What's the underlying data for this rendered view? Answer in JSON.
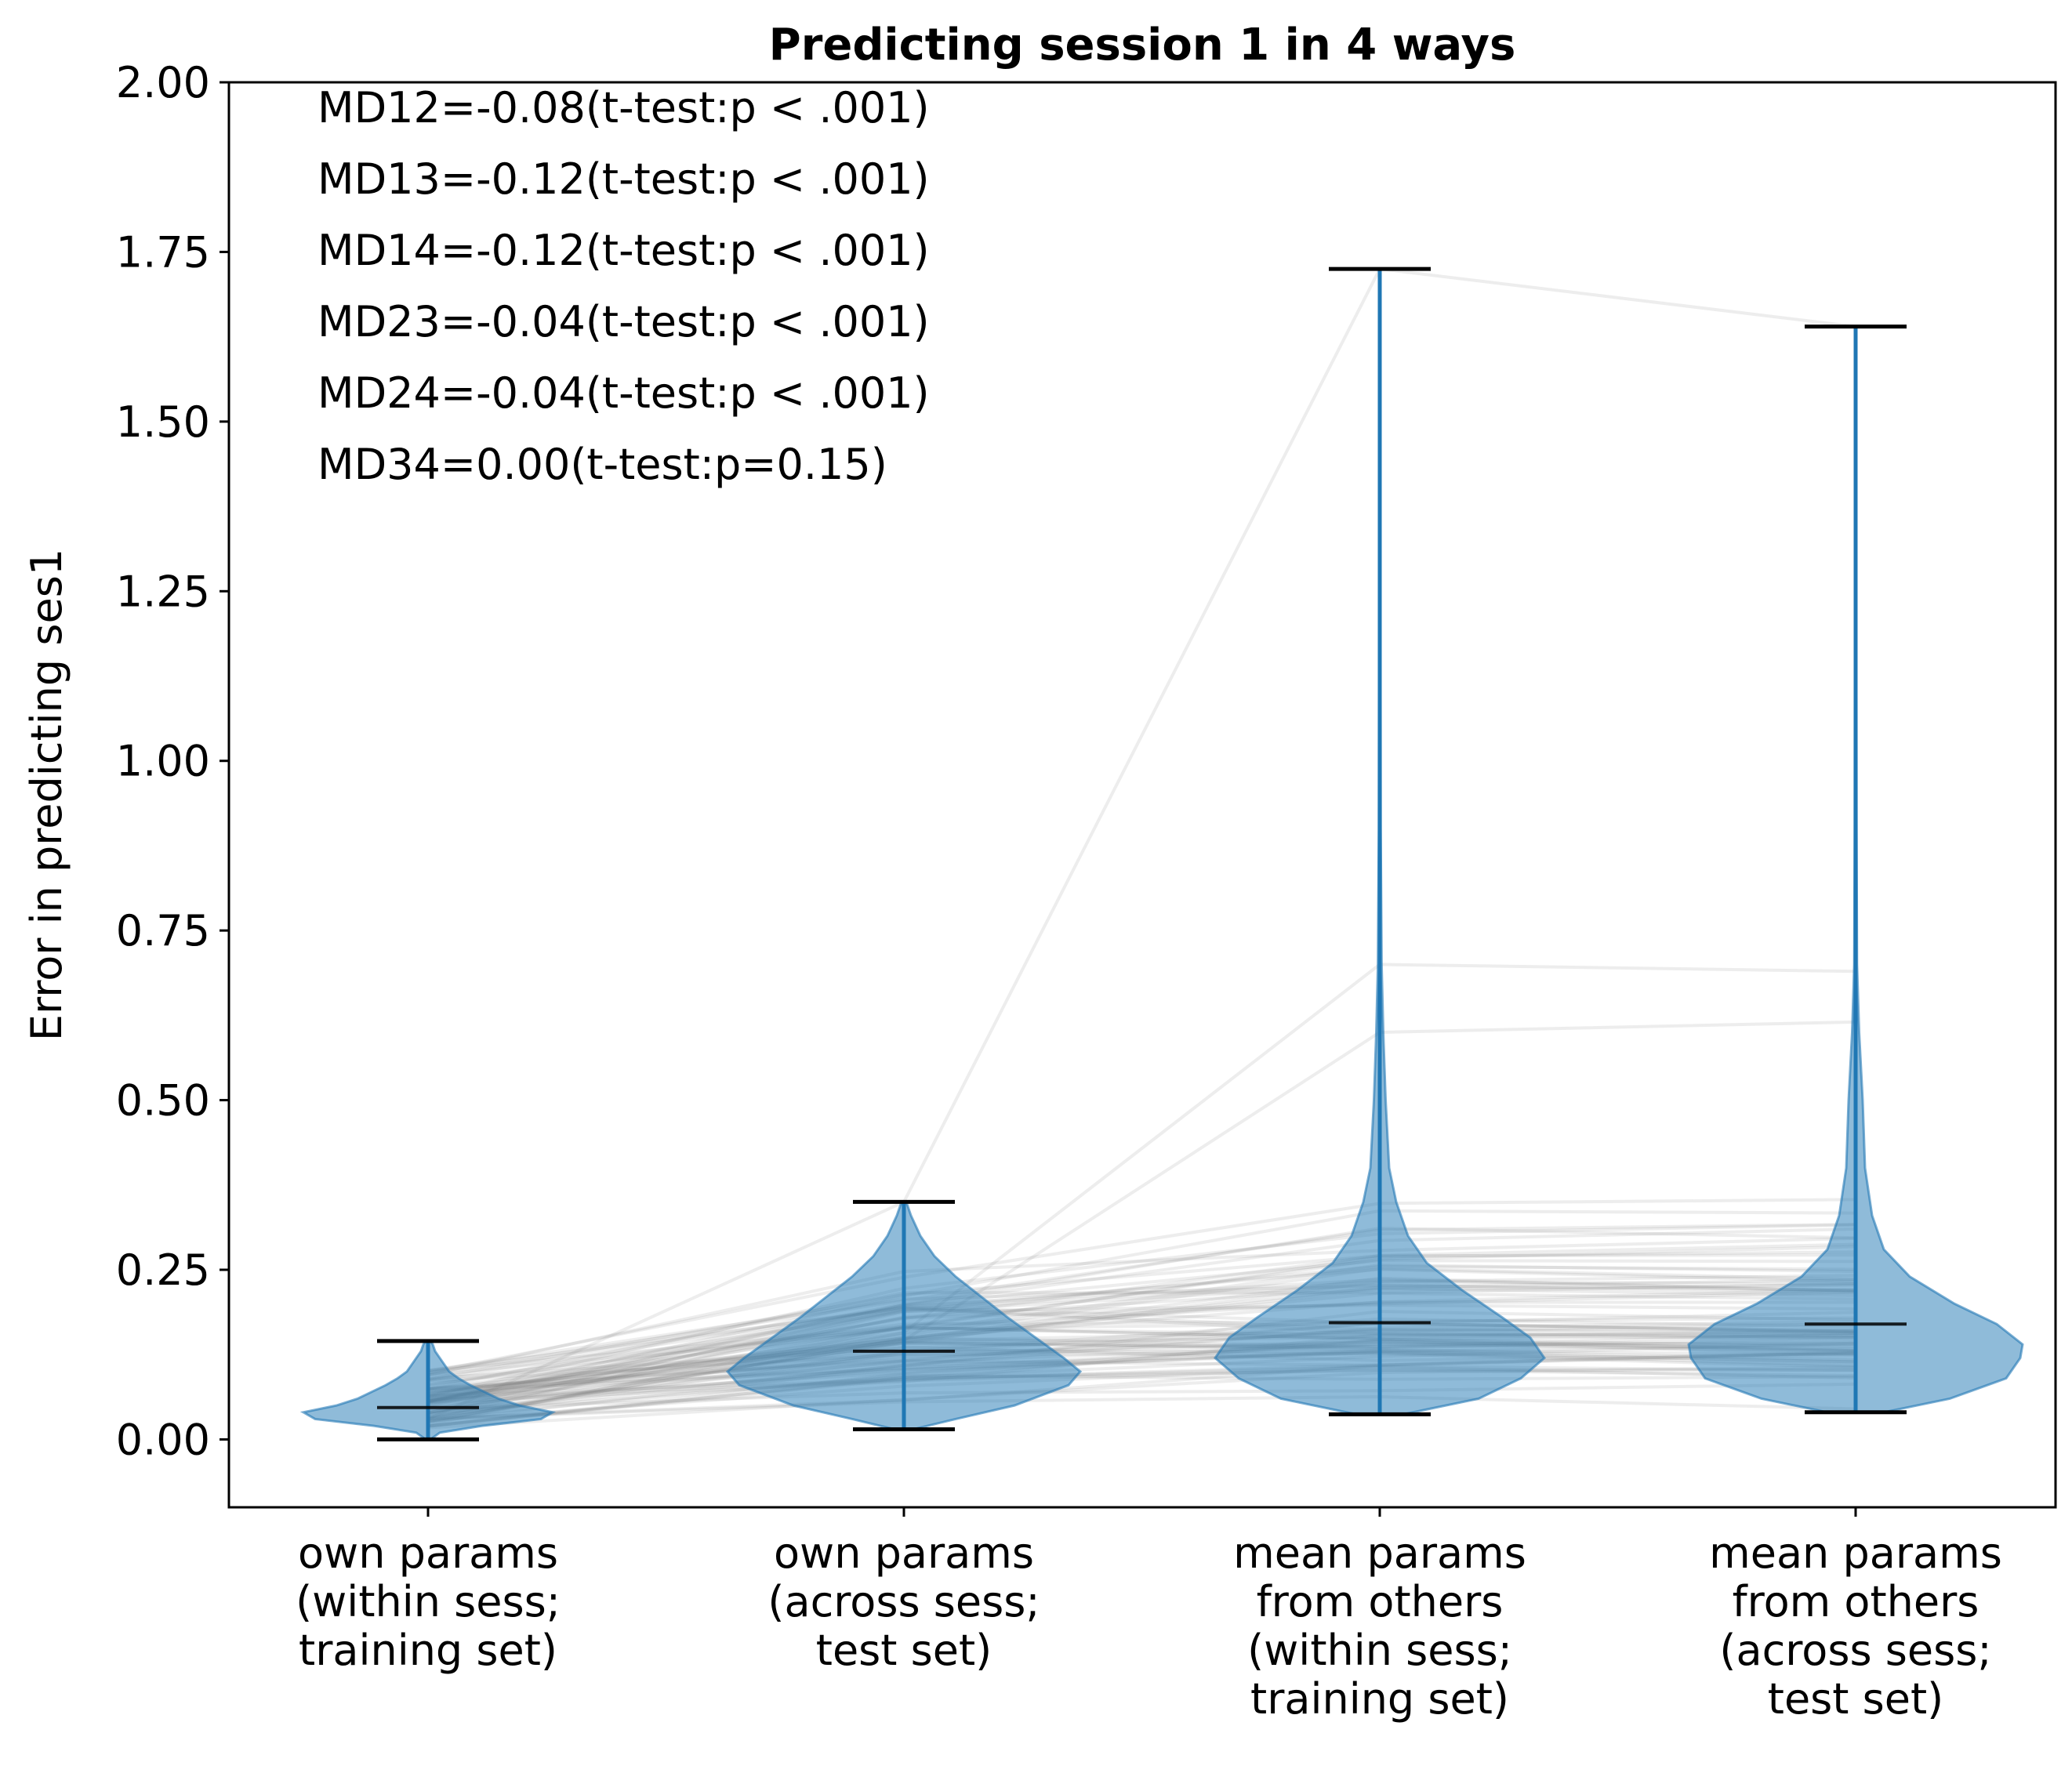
{
  "chart_data": {
    "type": "violin",
    "title": "Predicting session 1 in 4 ways",
    "ylabel": "Error in predicting ses1",
    "xlabel": "",
    "ylim": [
      -0.1,
      2.0
    ],
    "yticks": [
      "0.00",
      "0.25",
      "0.50",
      "0.75",
      "1.00",
      "1.25",
      "1.50",
      "1.75",
      "2.00"
    ],
    "ytick_values": [
      0.0,
      0.25,
      0.5,
      0.75,
      1.0,
      1.25,
      1.5,
      1.75,
      2.0
    ],
    "grid": false,
    "categories": [
      [
        "own params",
        "(within sess;",
        "training set)"
      ],
      [
        "own params",
        "(across sess;",
        "test set)"
      ],
      [
        "mean params",
        "from others",
        "(within sess;",
        "training set)"
      ],
      [
        "mean params",
        "from others",
        "(across sess;",
        "test set)"
      ]
    ],
    "violins": [
      {
        "min": 0.0,
        "max": 0.145,
        "mean": 0.047,
        "density": [
          [
            0.0,
            0.01
          ],
          [
            0.01,
            0.05
          ],
          [
            0.02,
            0.23
          ],
          [
            0.03,
            0.48
          ],
          [
            0.04,
            0.53
          ],
          [
            0.05,
            0.39
          ],
          [
            0.06,
            0.3
          ],
          [
            0.07,
            0.24
          ],
          [
            0.08,
            0.18
          ],
          [
            0.09,
            0.13
          ],
          [
            0.1,
            0.09
          ],
          [
            0.11,
            0.07
          ],
          [
            0.12,
            0.05
          ],
          [
            0.13,
            0.03
          ],
          [
            0.14,
            0.02
          ],
          [
            0.145,
            0.01
          ]
        ]
      },
      {
        "min": 0.015,
        "max": 0.35,
        "mean": 0.13,
        "density": [
          [
            0.015,
            0.04
          ],
          [
            0.03,
            0.22
          ],
          [
            0.05,
            0.47
          ],
          [
            0.08,
            0.7
          ],
          [
            0.1,
            0.75
          ],
          [
            0.12,
            0.68
          ],
          [
            0.15,
            0.56
          ],
          [
            0.18,
            0.44
          ],
          [
            0.21,
            0.33
          ],
          [
            0.24,
            0.22
          ],
          [
            0.27,
            0.13
          ],
          [
            0.3,
            0.07
          ],
          [
            0.33,
            0.03
          ],
          [
            0.35,
            0.01
          ]
        ]
      },
      {
        "min": 0.037,
        "max": 1.725,
        "mean": 0.172,
        "density": [
          [
            0.037,
            0.1
          ],
          [
            0.06,
            0.42
          ],
          [
            0.09,
            0.6
          ],
          [
            0.12,
            0.7
          ],
          [
            0.15,
            0.64
          ],
          [
            0.18,
            0.52
          ],
          [
            0.22,
            0.35
          ],
          [
            0.26,
            0.2
          ],
          [
            0.3,
            0.12
          ],
          [
            0.35,
            0.07
          ],
          [
            0.4,
            0.04
          ],
          [
            0.5,
            0.025
          ],
          [
            0.6,
            0.015
          ],
          [
            0.7,
            0.008
          ],
          [
            0.9,
            0.004
          ],
          [
            1.2,
            0.003
          ],
          [
            1.5,
            0.002
          ],
          [
            1.725,
            0.002
          ]
        ]
      },
      {
        "min": 0.04,
        "max": 1.64,
        "mean": 0.17,
        "density": [
          [
            0.04,
            0.12
          ],
          [
            0.06,
            0.4
          ],
          [
            0.09,
            0.64
          ],
          [
            0.12,
            0.7
          ],
          [
            0.14,
            0.71
          ],
          [
            0.17,
            0.6
          ],
          [
            0.2,
            0.42
          ],
          [
            0.24,
            0.23
          ],
          [
            0.28,
            0.12
          ],
          [
            0.33,
            0.07
          ],
          [
            0.4,
            0.04
          ],
          [
            0.5,
            0.03
          ],
          [
            0.6,
            0.015
          ],
          [
            0.7,
            0.006
          ],
          [
            0.9,
            0.004
          ],
          [
            1.2,
            0.003
          ],
          [
            1.64,
            0.002
          ]
        ]
      }
    ],
    "paired_lines_count": 80,
    "violin_color": "#1f77b4",
    "line_color": "#808080",
    "annotations": [
      "MD12=-0.08(t-test:p < .001)",
      "MD13=-0.12(t-test:p < .001)",
      "MD14=-0.12(t-test:p < .001)",
      "MD23=-0.04(t-test:p < .001)",
      "MD24=-0.04(t-test:p < .001)",
      "MD34=0.00(t-test:p=0.15)"
    ]
  }
}
